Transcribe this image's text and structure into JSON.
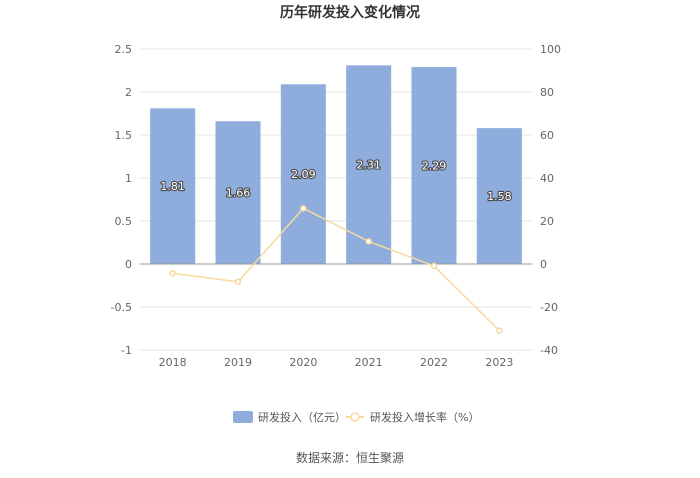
{
  "chart_data": {
    "type": "bar+line",
    "title": "历年研发投入变化情况",
    "categories": [
      "2018",
      "2019",
      "2020",
      "2021",
      "2022",
      "2023"
    ],
    "series": [
      {
        "name": "研发投入（亿元）",
        "type": "bar",
        "axis": "left",
        "color": "#8eacdc",
        "values": [
          1.81,
          1.66,
          2.09,
          2.31,
          2.29,
          1.58
        ],
        "labels": [
          "1.81",
          "1.66",
          "2.09",
          "2.31",
          "2.29",
          "1.58"
        ]
      },
      {
        "name": "研发投入增长率（%）",
        "type": "line",
        "axis": "right",
        "color": "#f7d9a0",
        "values": [
          -4.3,
          -8.3,
          25.9,
          10.5,
          -0.9,
          -31.0
        ]
      }
    ],
    "left_axis": {
      "min": -1,
      "max": 2.5,
      "ticks": [
        "2.5",
        "2",
        "1.5",
        "1",
        "0.5",
        "0",
        "-0.5",
        "-1"
      ]
    },
    "right_axis": {
      "min": -40,
      "max": 100,
      "ticks": [
        "100",
        "80",
        "60",
        "40",
        "20",
        "0",
        "-20",
        "-40"
      ]
    },
    "grid": true,
    "legend_position": "bottom",
    "source": "数据来源：恒生聚源"
  }
}
